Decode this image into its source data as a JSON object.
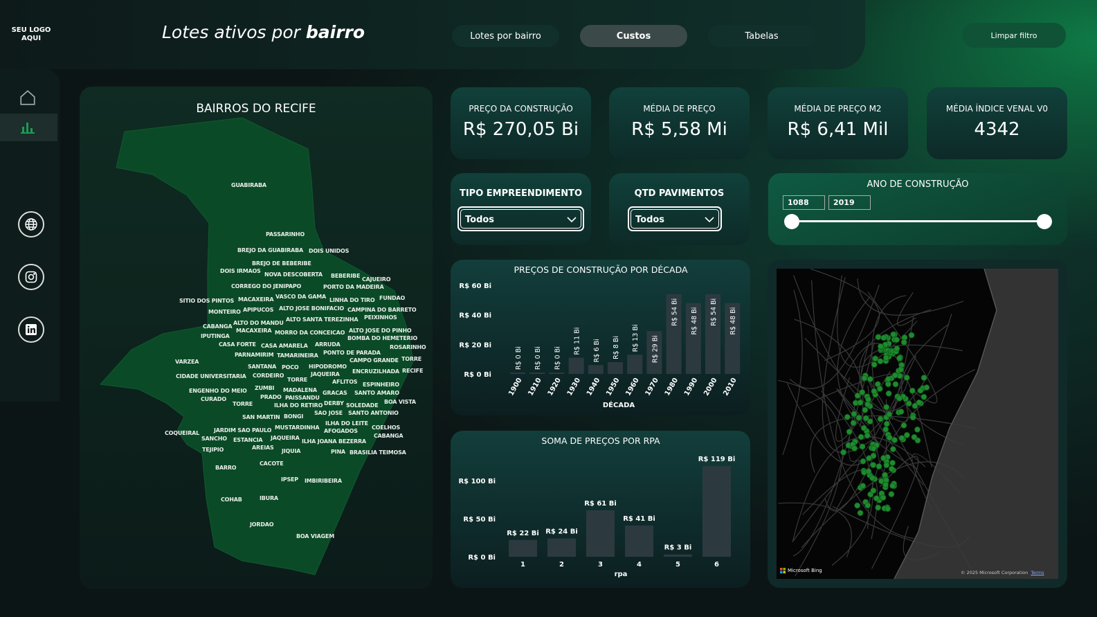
{
  "header": {
    "logo": "SEU LOGO AQUI",
    "title_prefix": "Lotes ativos por ",
    "title_bold": "bairro",
    "nav": [
      "Lotes por bairro",
      "Custos",
      "Tabelas"
    ],
    "active_nav": "Custos",
    "clear_filter": "Limpar filtro"
  },
  "sidebar": {
    "items": [
      "home-icon",
      "bar-chart-icon",
      "globe-icon",
      "instagram-icon",
      "linkedin-icon"
    ],
    "active": "bar-chart-icon"
  },
  "colors": {
    "accent": "#0e7a45",
    "map_fill": "#0b4a27",
    "bar": "#2c3a40",
    "dot": "#1f8a2e"
  },
  "neighborhood_map": {
    "title": "BAIRROS DO RECIFE",
    "labels": [
      "GUABIRABA",
      "PASSARINHO",
      "BREJO DA GUABIRABA",
      "BREJO DE BEBERIBE",
      "DOIS UNIDOS",
      "DOIS IRMAOS",
      "NOVA DESCOBERTA",
      "CORREGO DO JENIPAPO",
      "VASCO DA GAMA",
      "BEBERIBE",
      "PORTO DA MADEIRA",
      "MACAXEIRA",
      "LINHA DO TIRO",
      "CAJUEIRO",
      "SITIO DOS PINTOS",
      "ALTO JOSE BONIFACIO",
      "FUNDAO",
      "ALTO SANTA TEREZINHA",
      "APIPUCOS",
      "MORRO DA CONCEICAO",
      "CAMPINA DO BARRETO",
      "PEIXINHOS",
      "ALTO DO MANDU",
      "ALTO JOSE DO PINHO",
      "BOMBA DO HEMETERIO",
      "MONTEIRO",
      "MACAXEIRA",
      "ARRUDA",
      "CABANGA",
      "CASA AMARELA",
      "PONTO DE PARADA",
      "CAMPO GRANDE",
      "TAMARINEIRA",
      "ROSARINHO",
      "HIPODROMO",
      "CASA FORTE",
      "PARNAMIRIM",
      "ENCRUZILHADA",
      "IPUTINGA",
      "POCO",
      "JAQUEIRA",
      "SANTANA",
      "AFLITOS",
      "TORRE",
      "ESPINHEIRO",
      "TORRE",
      "GRACAS",
      "RECIFE",
      "VARZEA",
      "CORDEIRO",
      "SANTO AMARO",
      "MADALENA",
      "CIDADE UNIVERSITARIA",
      "ZUMBI",
      "DERBY",
      "ENGENHO DO MEIO",
      "SOLEDADE",
      "PRADO",
      "BOA VISTA",
      "TORRE",
      "ILHA DO RETIRO",
      "PAISSANDU",
      "SANTO ANTONIO",
      "BONGI",
      "ILHA DO LEITE",
      "COELHOS",
      "CURADO",
      "SAN MARTIN",
      "MUSTARDINHA",
      "ILHA JOANA BEZERRA",
      "SAO JOSE",
      "JAQUEIRA",
      "AFOGADOS",
      "CABANGA",
      "BRASILIA TEIMOSA",
      "JARDIM SAO PAULO",
      "ESTANCIA",
      "SANCHO",
      "COQUEIRAL",
      "JIQUIA",
      "TEJIPIO",
      "AREIAS",
      "PINA",
      "CACOTE",
      "BARRO",
      "IPSEP",
      "IMBIRIBEIRA",
      "COHAB",
      "IBURA",
      "JORDAO",
      "BOA VIAGEM"
    ]
  },
  "kpis": [
    {
      "label": "PREÇO DA CONSTRUÇÃO",
      "value": "R$ 270,05 Bi"
    },
    {
      "label": "MÉDIA DE PREÇO",
      "value": "R$ 5,58 Mi"
    },
    {
      "label": "MÉDIA DE PREÇO M2",
      "value": "R$ 6,41 Mil"
    },
    {
      "label": "MÉDIA ÍNDICE VENAL V0",
      "value": "4342"
    }
  ],
  "slicers": {
    "tipo": {
      "label": "TIPO EMPREENDIMENTO",
      "value": "Todos"
    },
    "pavimentos": {
      "label": "QTD PAVIMENTOS",
      "value": "Todos"
    },
    "ano": {
      "label": "ANO DE CONSTRUÇÃO",
      "min": "1088",
      "max": "2019"
    }
  },
  "bing_map": {
    "brand": "Microsoft Bing",
    "copyright": "© 2025 Microsoft Corporation",
    "terms": "Terms"
  },
  "chart_data": [
    {
      "type": "bar",
      "title": "PREÇOS DE CONSTRUÇÃO POR DÉCADA",
      "xlabel": "DÉCADA",
      "ylabel": "",
      "ylim": [
        0,
        60
      ],
      "yticks": [
        "R$ 0 Bi",
        "R$ 20 Bi",
        "R$ 40 Bi",
        "R$ 60 Bi"
      ],
      "categories": [
        "1900",
        "1910",
        "1920",
        "1930",
        "1940",
        "1950",
        "1960",
        "1970",
        "1980",
        "1990",
        "2000",
        "2010"
      ],
      "values": [
        0,
        0,
        0,
        11,
        6,
        8,
        13,
        29,
        54,
        48,
        54,
        48
      ],
      "data_labels": [
        "R$ 0 Bi",
        "R$ 0 Bi",
        "R$ 0 Bi",
        "R$ 11 Bi",
        "R$ 6 Bi",
        "R$ 8 Bi",
        "R$ 13 Bi",
        "R$ 29 Bi",
        "R$ 54 Bi",
        "R$ 48 Bi",
        "R$ 54 Bi",
        "R$ 48 Bi"
      ],
      "grid": false
    },
    {
      "type": "bar",
      "title": "SOMA DE PREÇOS POR RPA",
      "xlabel": "rpa",
      "ylabel": "",
      "ylim": [
        0,
        120
      ],
      "yticks": [
        "R$ 0 Bi",
        "R$ 50 Bi",
        "R$ 100 Bi"
      ],
      "categories": [
        "1",
        "2",
        "3",
        "4",
        "5",
        "6"
      ],
      "values": [
        22,
        24,
        61,
        41,
        3,
        119
      ],
      "data_labels": [
        "R$ 22 Bi",
        "R$ 24 Bi",
        "R$ 61 Bi",
        "R$ 41 Bi",
        "R$ 3 Bi",
        "R$ 119 Bi"
      ],
      "grid": false
    }
  ]
}
